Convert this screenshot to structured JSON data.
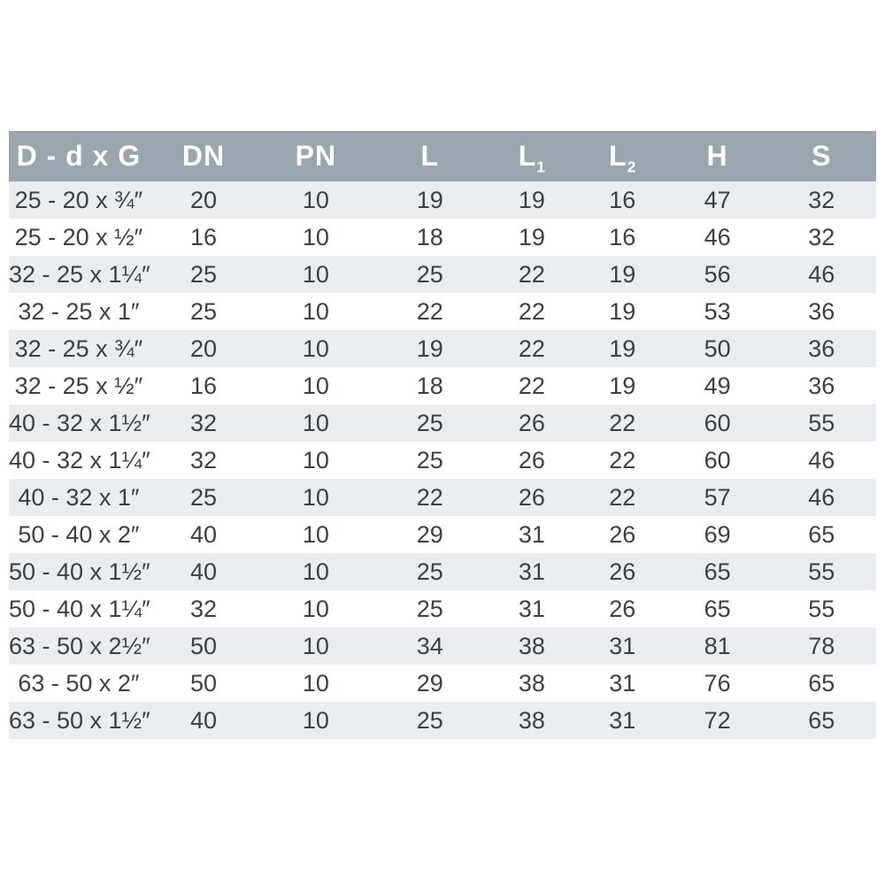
{
  "page": {
    "background": "#ffffff"
  },
  "table": {
    "title": "fitting-dimensions-table",
    "colors": {
      "header_bg": "#9AA5AD",
      "header_text": "#FFFFFF",
      "row_alt_bg": "#E9EDF0",
      "row_bg": "#FFFFFF",
      "cell_text": "#3B4045"
    },
    "columns": [
      {
        "id": "d-dxg",
        "label": "D - d x G",
        "sub": ""
      },
      {
        "id": "dn",
        "label": "DN",
        "sub": ""
      },
      {
        "id": "pn",
        "label": "PN",
        "sub": ""
      },
      {
        "id": "l",
        "label": "L",
        "sub": ""
      },
      {
        "id": "l1",
        "label": "L",
        "sub": "1"
      },
      {
        "id": "l2",
        "label": "L",
        "sub": "2"
      },
      {
        "id": "h",
        "label": "H",
        "sub": ""
      },
      {
        "id": "s",
        "label": "S",
        "sub": ""
      }
    ],
    "rows": [
      [
        "25 - 20 x ¾″",
        "20",
        "10",
        "19",
        "19",
        "16",
        "47",
        "32"
      ],
      [
        "25 - 20 x ½″",
        "16",
        "10",
        "18",
        "19",
        "16",
        "46",
        "32"
      ],
      [
        "32 - 25 x 1¼″",
        "25",
        "10",
        "25",
        "22",
        "19",
        "56",
        "46"
      ],
      [
        "32 - 25 x 1″",
        "25",
        "10",
        "22",
        "22",
        "19",
        "53",
        "36"
      ],
      [
        "32 - 25 x ¾″",
        "20",
        "10",
        "19",
        "22",
        "19",
        "50",
        "36"
      ],
      [
        "32 - 25 x ½″",
        "16",
        "10",
        "18",
        "22",
        "19",
        "49",
        "36"
      ],
      [
        "40 - 32 x 1½″",
        "32",
        "10",
        "25",
        "26",
        "22",
        "60",
        "55"
      ],
      [
        "40 - 32 x 1¼″",
        "32",
        "10",
        "25",
        "26",
        "22",
        "60",
        "46"
      ],
      [
        "40 - 32 x 1″",
        "25",
        "10",
        "22",
        "26",
        "22",
        "57",
        "46"
      ],
      [
        "50 - 40 x 2″",
        "40",
        "10",
        "29",
        "31",
        "26",
        "69",
        "65"
      ],
      [
        "50 - 40 x 1½″",
        "40",
        "10",
        "25",
        "31",
        "26",
        "65",
        "55"
      ],
      [
        "50 - 40 x 1¼″",
        "32",
        "10",
        "25",
        "31",
        "26",
        "65",
        "55"
      ],
      [
        "63 - 50 x 2½″",
        "50",
        "10",
        "34",
        "38",
        "31",
        "81",
        "78"
      ],
      [
        "63 - 50 x 2″",
        "50",
        "10",
        "29",
        "38",
        "31",
        "76",
        "65"
      ],
      [
        "63 - 50 x 1½″",
        "40",
        "10",
        "25",
        "38",
        "31",
        "72",
        "65"
      ]
    ]
  }
}
